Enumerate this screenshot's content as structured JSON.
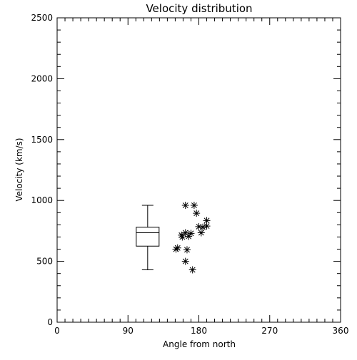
{
  "chart_data": {
    "type": "scatter",
    "title": "Velocity distribution",
    "xlabel": "Angle from north",
    "ylabel": "Velocity (km/s)",
    "xlim": [
      0,
      360
    ],
    "ylim": [
      0,
      2500
    ],
    "x_ticks": [
      0,
      90,
      180,
      270,
      360
    ],
    "y_ticks": [
      0,
      500,
      1000,
      1500,
      2000,
      2500
    ],
    "x_tick_labels": [
      "0",
      "90",
      "180",
      "270",
      "360"
    ],
    "y_tick_labels": [
      "0",
      "500",
      "1000",
      "1500",
      "2000",
      "2500"
    ],
    "grid": false,
    "marker": "asterisk",
    "boxplot": {
      "x": 115,
      "whisker_low": 430,
      "q1": 625,
      "median": 735,
      "q3": 780,
      "whisker_high": 960
    },
    "points": [
      {
        "x": 163,
        "y": 960
      },
      {
        "x": 174,
        "y": 960
      },
      {
        "x": 177,
        "y": 895
      },
      {
        "x": 190,
        "y": 835
      },
      {
        "x": 180,
        "y": 785
      },
      {
        "x": 185,
        "y": 780
      },
      {
        "x": 190,
        "y": 790
      },
      {
        "x": 183,
        "y": 735
      },
      {
        "x": 163,
        "y": 735
      },
      {
        "x": 170,
        "y": 730
      },
      {
        "x": 158,
        "y": 715
      },
      {
        "x": 167,
        "y": 705
      },
      {
        "x": 159,
        "y": 700
      },
      {
        "x": 153,
        "y": 610
      },
      {
        "x": 151,
        "y": 600
      },
      {
        "x": 165,
        "y": 595
      },
      {
        "x": 163,
        "y": 500
      },
      {
        "x": 172,
        "y": 430
      }
    ]
  }
}
